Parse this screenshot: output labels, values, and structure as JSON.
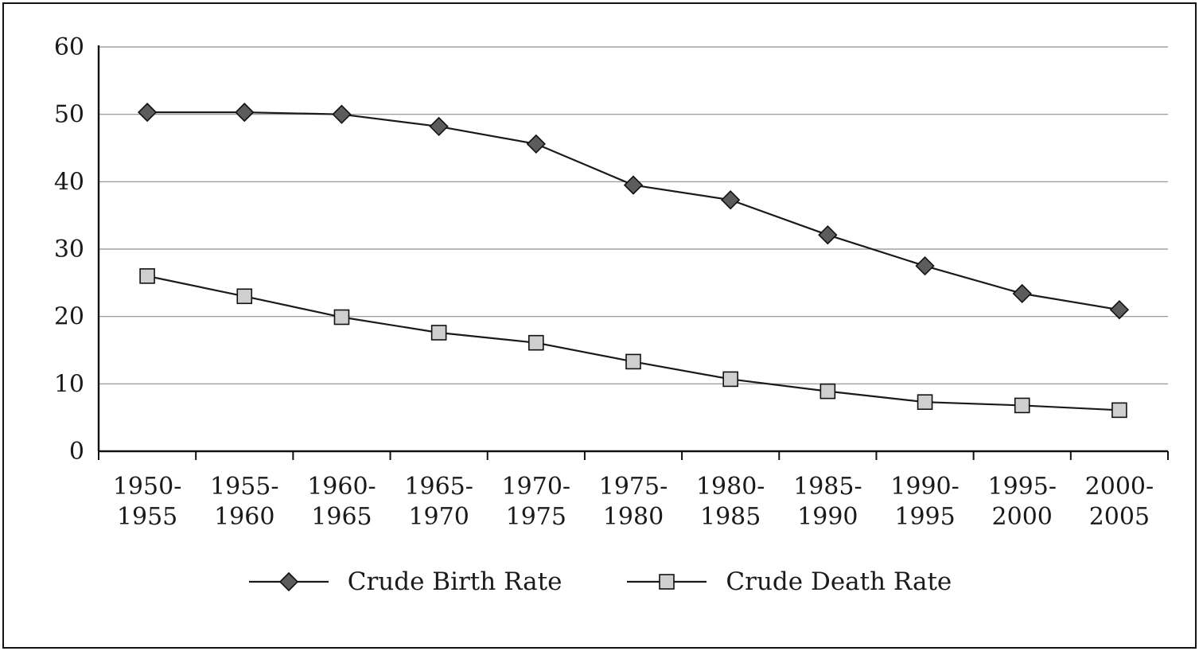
{
  "chart_data": {
    "type": "line",
    "categories": [
      "1950-1955",
      "1955-1960",
      "1960-1965",
      "1965-1970",
      "1970-1975",
      "1975-1980",
      "1980-1985",
      "1985-1990",
      "1990-1995",
      "1995-2000",
      "2000-2005"
    ],
    "series": [
      {
        "name": "Crude Birth Rate",
        "marker": "diamond",
        "fill": "#5c5c5c",
        "values": [
          50.3,
          50.3,
          50.0,
          48.2,
          45.6,
          39.5,
          37.3,
          32.1,
          27.5,
          23.4,
          21.0
        ]
      },
      {
        "name": "Crude Death Rate",
        "marker": "square",
        "fill": "#cfcfcf",
        "values": [
          26.0,
          23.0,
          19.9,
          17.6,
          16.1,
          13.3,
          10.7,
          8.9,
          7.3,
          6.8,
          6.1
        ]
      }
    ],
    "title": "",
    "xlabel": "",
    "ylabel": "",
    "ylim": [
      0,
      60
    ],
    "yticks": [
      0,
      10,
      20,
      30,
      40,
      50,
      60
    ],
    "grid": true,
    "legend_position": "bottom",
    "colors": {
      "line": "#1a1a1a",
      "grid": "#8f8f8f",
      "axis": "#111111",
      "marker_edge": "#111111"
    }
  }
}
